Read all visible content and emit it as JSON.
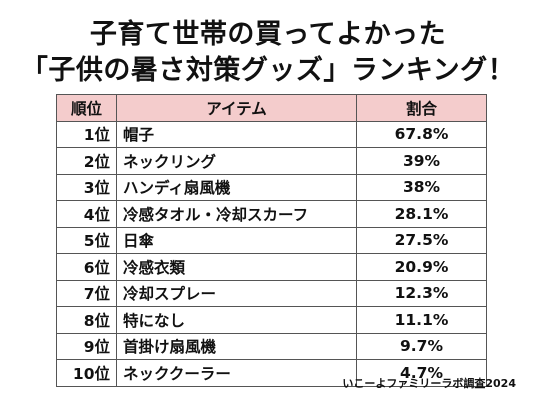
{
  "title_line1": "子育て世帯の買ってよかった",
  "title_line2": "「子供の暑さ対策グッズ」ランキング！",
  "chart_data": {
    "type": "table",
    "columns": [
      "順位",
      "アイテム",
      "割合"
    ],
    "rows": [
      {
        "rank": "1位",
        "item": "帽子",
        "percent": "67.8%"
      },
      {
        "rank": "2位",
        "item": "ネックリング",
        "percent": "39%"
      },
      {
        "rank": "3位",
        "item": "ハンディ扇風機",
        "percent": "38%"
      },
      {
        "rank": "4位",
        "item": "冷感タオル・冷却スカーフ",
        "percent": "28.1%"
      },
      {
        "rank": "5位",
        "item": "日傘",
        "percent": "27.5%"
      },
      {
        "rank": "6位",
        "item": "冷感衣類",
        "percent": "20.9%"
      },
      {
        "rank": "7位",
        "item": "冷却スプレー",
        "percent": "12.3%"
      },
      {
        "rank": "8位",
        "item": "特になし",
        "percent": "11.1%"
      },
      {
        "rank": "9位",
        "item": "首掛け扇風機",
        "percent": "9.7%"
      },
      {
        "rank": "10位",
        "item": "ネッククーラー",
        "percent": "4.7%"
      }
    ]
  },
  "source": "いこーよファミリーラボ調査2024",
  "colors": {
    "header_bg": "#f4cccc",
    "border": "#555555"
  }
}
